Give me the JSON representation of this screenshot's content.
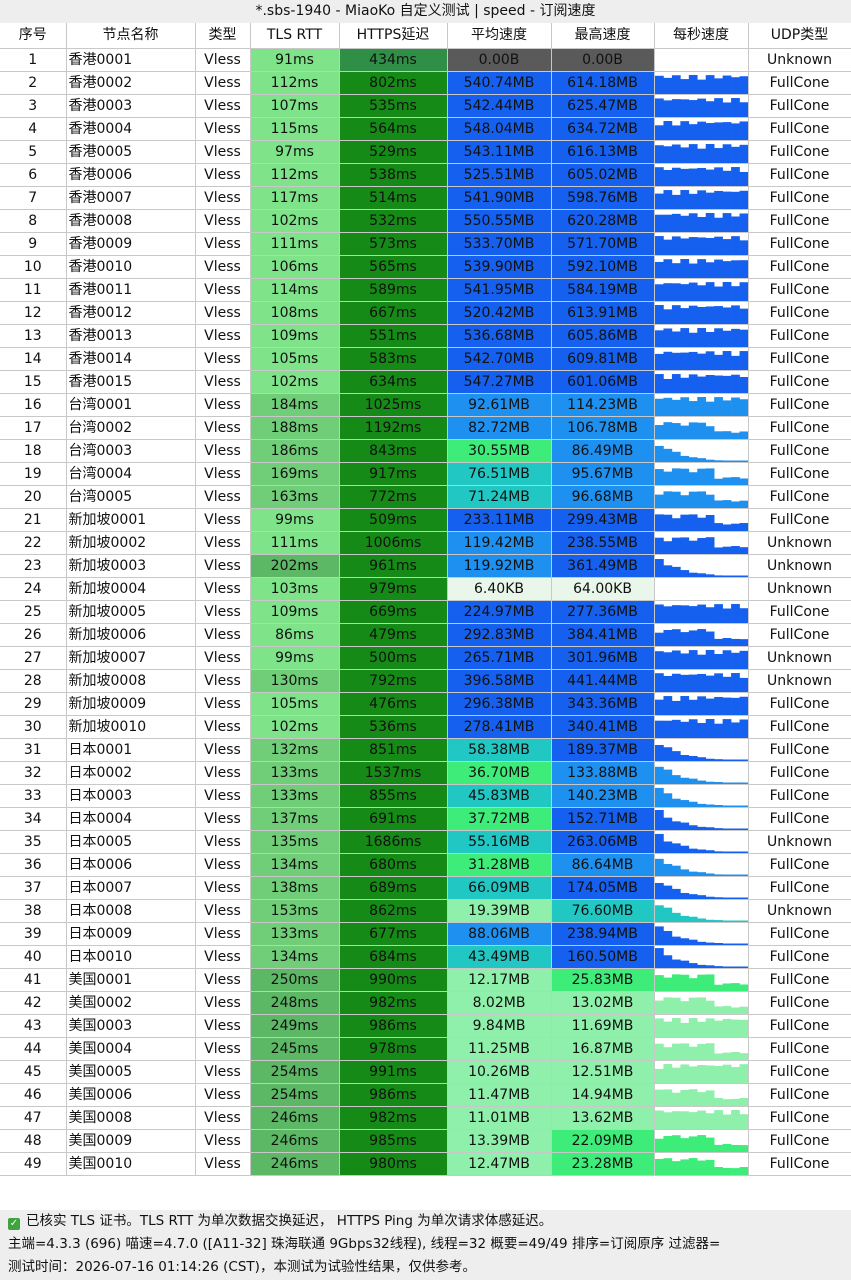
{
  "window": {
    "title": "*.sbs-1940 - MiaoKo 自定义测试 | speed - 订阅速度"
  },
  "table": {
    "headers": [
      "序号",
      "节点名称",
      "类型",
      "TLS RTT",
      "HTTPS延迟",
      "平均速度",
      "最高速度",
      "每秒速度",
      "UDP类型"
    ],
    "rows": [
      {
        "idx": "1",
        "name": "香港0001",
        "type": "Vless",
        "tls": "91ms",
        "https": "434ms",
        "avg": "0.00B",
        "max": "0.00B",
        "udp": "Unknown"
      },
      {
        "idx": "2",
        "name": "香港0002",
        "type": "Vless",
        "tls": "112ms",
        "https": "802ms",
        "avg": "540.74MB",
        "max": "614.18MB",
        "udp": "FullCone"
      },
      {
        "idx": "3",
        "name": "香港0003",
        "type": "Vless",
        "tls": "107ms",
        "https": "535ms",
        "avg": "542.44MB",
        "max": "625.47MB",
        "udp": "FullCone"
      },
      {
        "idx": "4",
        "name": "香港0004",
        "type": "Vless",
        "tls": "115ms",
        "https": "564ms",
        "avg": "548.04MB",
        "max": "634.72MB",
        "udp": "FullCone"
      },
      {
        "idx": "5",
        "name": "香港0005",
        "type": "Vless",
        "tls": "97ms",
        "https": "529ms",
        "avg": "543.11MB",
        "max": "616.13MB",
        "udp": "FullCone"
      },
      {
        "idx": "6",
        "name": "香港0006",
        "type": "Vless",
        "tls": "112ms",
        "https": "538ms",
        "avg": "525.51MB",
        "max": "605.02MB",
        "udp": "FullCone"
      },
      {
        "idx": "7",
        "name": "香港0007",
        "type": "Vless",
        "tls": "117ms",
        "https": "514ms",
        "avg": "541.90MB",
        "max": "598.76MB",
        "udp": "FullCone"
      },
      {
        "idx": "8",
        "name": "香港0008",
        "type": "Vless",
        "tls": "102ms",
        "https": "532ms",
        "avg": "550.55MB",
        "max": "620.28MB",
        "udp": "FullCone"
      },
      {
        "idx": "9",
        "name": "香港0009",
        "type": "Vless",
        "tls": "111ms",
        "https": "573ms",
        "avg": "533.70MB",
        "max": "571.70MB",
        "udp": "FullCone"
      },
      {
        "idx": "10",
        "name": "香港0010",
        "type": "Vless",
        "tls": "106ms",
        "https": "565ms",
        "avg": "539.90MB",
        "max": "592.10MB",
        "udp": "FullCone"
      },
      {
        "idx": "11",
        "name": "香港0011",
        "type": "Vless",
        "tls": "114ms",
        "https": "589ms",
        "avg": "541.95MB",
        "max": "584.19MB",
        "udp": "FullCone"
      },
      {
        "idx": "12",
        "name": "香港0012",
        "type": "Vless",
        "tls": "108ms",
        "https": "667ms",
        "avg": "520.42MB",
        "max": "613.91MB",
        "udp": "FullCone"
      },
      {
        "idx": "13",
        "name": "香港0013",
        "type": "Vless",
        "tls": "109ms",
        "https": "551ms",
        "avg": "536.68MB",
        "max": "605.86MB",
        "udp": "FullCone"
      },
      {
        "idx": "14",
        "name": "香港0014",
        "type": "Vless",
        "tls": "105ms",
        "https": "583ms",
        "avg": "542.70MB",
        "max": "609.81MB",
        "udp": "FullCone"
      },
      {
        "idx": "15",
        "name": "香港0015",
        "type": "Vless",
        "tls": "102ms",
        "https": "634ms",
        "avg": "547.27MB",
        "max": "601.06MB",
        "udp": "FullCone"
      },
      {
        "idx": "16",
        "name": "台湾0001",
        "type": "Vless",
        "tls": "184ms",
        "https": "1025ms",
        "avg": "92.61MB",
        "max": "114.23MB",
        "udp": "FullCone"
      },
      {
        "idx": "17",
        "name": "台湾0002",
        "type": "Vless",
        "tls": "188ms",
        "https": "1192ms",
        "avg": "82.72MB",
        "max": "106.78MB",
        "udp": "FullCone"
      },
      {
        "idx": "18",
        "name": "台湾0003",
        "type": "Vless",
        "tls": "186ms",
        "https": "843ms",
        "avg": "30.55MB",
        "max": "86.49MB",
        "udp": "FullCone"
      },
      {
        "idx": "19",
        "name": "台湾0004",
        "type": "Vless",
        "tls": "169ms",
        "https": "917ms",
        "avg": "76.51MB",
        "max": "95.67MB",
        "udp": "FullCone"
      },
      {
        "idx": "20",
        "name": "台湾0005",
        "type": "Vless",
        "tls": "163ms",
        "https": "772ms",
        "avg": "71.24MB",
        "max": "96.68MB",
        "udp": "FullCone"
      },
      {
        "idx": "21",
        "name": "新加坡0001",
        "type": "Vless",
        "tls": "99ms",
        "https": "509ms",
        "avg": "233.11MB",
        "max": "299.43MB",
        "udp": "FullCone"
      },
      {
        "idx": "22",
        "name": "新加坡0002",
        "type": "Vless",
        "tls": "111ms",
        "https": "1006ms",
        "avg": "119.42MB",
        "max": "238.55MB",
        "udp": "Unknown"
      },
      {
        "idx": "23",
        "name": "新加坡0003",
        "type": "Vless",
        "tls": "202ms",
        "https": "961ms",
        "avg": "119.92MB",
        "max": "361.49MB",
        "udp": "Unknown"
      },
      {
        "idx": "24",
        "name": "新加坡0004",
        "type": "Vless",
        "tls": "103ms",
        "https": "979ms",
        "avg": "6.40KB",
        "max": "64.00KB",
        "udp": "Unknown"
      },
      {
        "idx": "25",
        "name": "新加坡0005",
        "type": "Vless",
        "tls": "109ms",
        "https": "669ms",
        "avg": "224.97MB",
        "max": "277.36MB",
        "udp": "FullCone"
      },
      {
        "idx": "26",
        "name": "新加坡0006",
        "type": "Vless",
        "tls": "86ms",
        "https": "479ms",
        "avg": "292.83MB",
        "max": "384.41MB",
        "udp": "FullCone"
      },
      {
        "idx": "27",
        "name": "新加坡0007",
        "type": "Vless",
        "tls": "99ms",
        "https": "500ms",
        "avg": "265.71MB",
        "max": "301.96MB",
        "udp": "Unknown"
      },
      {
        "idx": "28",
        "name": "新加坡0008",
        "type": "Vless",
        "tls": "130ms",
        "https": "792ms",
        "avg": "396.58MB",
        "max": "441.44MB",
        "udp": "Unknown"
      },
      {
        "idx": "29",
        "name": "新加坡0009",
        "type": "Vless",
        "tls": "105ms",
        "https": "476ms",
        "avg": "296.38MB",
        "max": "343.36MB",
        "udp": "FullCone"
      },
      {
        "idx": "30",
        "name": "新加坡0010",
        "type": "Vless",
        "tls": "102ms",
        "https": "536ms",
        "avg": "278.41MB",
        "max": "340.41MB",
        "udp": "FullCone"
      },
      {
        "idx": "31",
        "name": "日本0001",
        "type": "Vless",
        "tls": "132ms",
        "https": "851ms",
        "avg": "58.38MB",
        "max": "189.37MB",
        "udp": "FullCone"
      },
      {
        "idx": "32",
        "name": "日本0002",
        "type": "Vless",
        "tls": "133ms",
        "https": "1537ms",
        "avg": "36.70MB",
        "max": "133.88MB",
        "udp": "FullCone"
      },
      {
        "idx": "33",
        "name": "日本0003",
        "type": "Vless",
        "tls": "133ms",
        "https": "855ms",
        "avg": "45.83MB",
        "max": "140.23MB",
        "udp": "FullCone"
      },
      {
        "idx": "34",
        "name": "日本0004",
        "type": "Vless",
        "tls": "137ms",
        "https": "691ms",
        "avg": "37.72MB",
        "max": "152.71MB",
        "udp": "FullCone"
      },
      {
        "idx": "35",
        "name": "日本0005",
        "type": "Vless",
        "tls": "135ms",
        "https": "1686ms",
        "avg": "55.16MB",
        "max": "263.06MB",
        "udp": "Unknown"
      },
      {
        "idx": "36",
        "name": "日本0006",
        "type": "Vless",
        "tls": "134ms",
        "https": "680ms",
        "avg": "31.28MB",
        "max": "86.64MB",
        "udp": "FullCone"
      },
      {
        "idx": "37",
        "name": "日本0007",
        "type": "Vless",
        "tls": "138ms",
        "https": "689ms",
        "avg": "66.09MB",
        "max": "174.05MB",
        "udp": "FullCone"
      },
      {
        "idx": "38",
        "name": "日本0008",
        "type": "Vless",
        "tls": "153ms",
        "https": "862ms",
        "avg": "19.39MB",
        "max": "76.60MB",
        "udp": "Unknown"
      },
      {
        "idx": "39",
        "name": "日本0009",
        "type": "Vless",
        "tls": "133ms",
        "https": "677ms",
        "avg": "88.06MB",
        "max": "238.94MB",
        "udp": "FullCone"
      },
      {
        "idx": "40",
        "name": "日本0010",
        "type": "Vless",
        "tls": "134ms",
        "https": "684ms",
        "avg": "43.49MB",
        "max": "160.50MB",
        "udp": "FullCone"
      },
      {
        "idx": "41",
        "name": "美国0001",
        "type": "Vless",
        "tls": "250ms",
        "https": "990ms",
        "avg": "12.17MB",
        "max": "25.83MB",
        "udp": "FullCone"
      },
      {
        "idx": "42",
        "name": "美国0002",
        "type": "Vless",
        "tls": "248ms",
        "https": "982ms",
        "avg": "8.02MB",
        "max": "13.02MB",
        "udp": "FullCone"
      },
      {
        "idx": "43",
        "name": "美国0003",
        "type": "Vless",
        "tls": "249ms",
        "https": "986ms",
        "avg": "9.84MB",
        "max": "11.69MB",
        "udp": "FullCone"
      },
      {
        "idx": "44",
        "name": "美国0004",
        "type": "Vless",
        "tls": "245ms",
        "https": "978ms",
        "avg": "11.25MB",
        "max": "16.87MB",
        "udp": "FullCone"
      },
      {
        "idx": "45",
        "name": "美国0005",
        "type": "Vless",
        "tls": "254ms",
        "https": "991ms",
        "avg": "10.26MB",
        "max": "12.51MB",
        "udp": "FullCone"
      },
      {
        "idx": "46",
        "name": "美国0006",
        "type": "Vless",
        "tls": "254ms",
        "https": "986ms",
        "avg": "11.47MB",
        "max": "14.94MB",
        "udp": "FullCone"
      },
      {
        "idx": "47",
        "name": "美国0008",
        "type": "Vless",
        "tls": "246ms",
        "https": "982ms",
        "avg": "11.01MB",
        "max": "13.62MB",
        "udp": "FullCone"
      },
      {
        "idx": "48",
        "name": "美国0009",
        "type": "Vless",
        "tls": "246ms",
        "https": "985ms",
        "avg": "13.39MB",
        "max": "22.09MB",
        "udp": "FullCone"
      },
      {
        "idx": "49",
        "name": "美国0010",
        "type": "Vless",
        "tls": "246ms",
        "https": "980ms",
        "avg": "12.47MB",
        "max": "23.28MB",
        "udp": "FullCone"
      }
    ]
  },
  "footer": {
    "line1": "已核实 TLS 证书。TLS RTT 为单次数据交换延迟， HTTPS Ping 为单次请求体感延迟。",
    "line2": "主端=4.3.3 (696) 喵速=4.7.0 ([A11-32] 珠海联通 9Gbps32线程), 线程=32 概要=49/49 排序=订阅原序 过滤器=",
    "line3": "测试时间：2026-07-16 01:14:26 (CST)，本测试为试验性结果，仅供参考。"
  },
  "colors": {
    "tls_light": "#7fe38a",
    "tls_mid": "#6fce77",
    "tls_dark": "#5cb865",
    "https": "#168a16",
    "https_first": "#2f8f47",
    "speed_fast": "#1560ee",
    "speed_mid": "#1e90f0",
    "speed_low": "#21c7c2",
    "speed_vlow": "#3eec7a",
    "speed_min": "#8ef0aa",
    "speed_zero": "#5a5a5a",
    "speed_kb": "#e9f7ea"
  }
}
